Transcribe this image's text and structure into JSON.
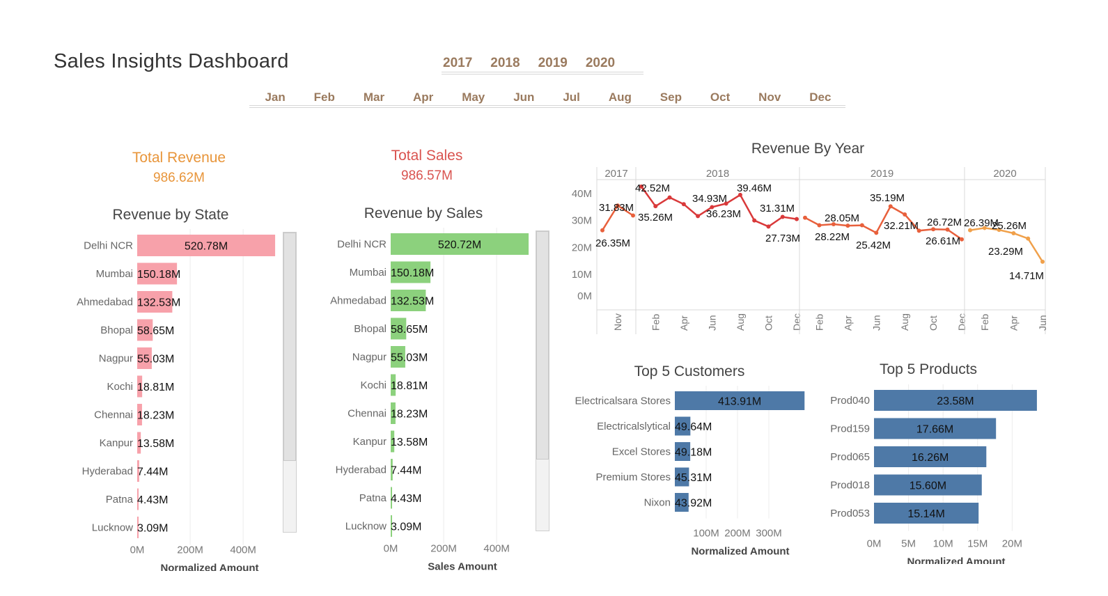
{
  "header": {
    "title": "Sales Insights Dashboard",
    "years": [
      "2017",
      "2018",
      "2019",
      "2020"
    ],
    "months": [
      "Jan",
      "Feb",
      "Mar",
      "Apr",
      "May",
      "Jun",
      "Jul",
      "Aug",
      "Sep",
      "Oct",
      "Nov",
      "Dec"
    ]
  },
  "kpis": {
    "revenue": {
      "label": "Total Revenue",
      "value": "986.62M",
      "color": "#e8953a"
    },
    "sales": {
      "label": "Total Sales",
      "value": "986.57M",
      "color": "#d9534f"
    }
  },
  "chart_data": [
    {
      "type": "bar",
      "title": "Revenue by State",
      "xlabel": "Normalized Amount",
      "color": "#f7a1aa",
      "categories": [
        "Delhi NCR",
        "Mumbai",
        "Ahmedabad",
        "Bhopal",
        "Nagpur",
        "Kochi",
        "Chennai",
        "Kanpur",
        "Hyderabad",
        "Patna",
        "Lucknow"
      ],
      "values": [
        520.78,
        150.18,
        132.53,
        58.65,
        55.03,
        18.81,
        18.23,
        13.58,
        7.44,
        4.43,
        3.09
      ],
      "labels": [
        "520.78M",
        "150.18M",
        "132.53M",
        "58.65M",
        "55.03M",
        "18.81M",
        "18.23M",
        "13.58M",
        "7.44M",
        "4.43M",
        "3.09M"
      ],
      "xticks": [
        "0M",
        "200M",
        "400M"
      ],
      "xlim": [
        0,
        560
      ]
    },
    {
      "type": "bar",
      "title": "Revenue by Sales",
      "xlabel": "Sales Amount",
      "color": "#8cd17d",
      "categories": [
        "Delhi NCR",
        "Mumbai",
        "Ahmedabad",
        "Bhopal",
        "Nagpur",
        "Kochi",
        "Chennai",
        "Kanpur",
        "Hyderabad",
        "Patna",
        "Lucknow"
      ],
      "values": [
        520.72,
        150.18,
        132.53,
        58.65,
        55.03,
        18.81,
        18.23,
        13.58,
        7.44,
        4.43,
        3.09
      ],
      "labels": [
        "520.72M",
        "150.18M",
        "132.53M",
        "58.65M",
        "55.03M",
        "18.81M",
        "18.23M",
        "13.58M",
        "7.44M",
        "4.43M",
        "3.09M"
      ],
      "xticks": [
        "0M",
        "200M",
        "400M"
      ],
      "xlim": [
        0,
        560
      ]
    },
    {
      "type": "line",
      "title": "Revenue By Year",
      "year_headers": [
        "2017",
        "2018",
        "2019",
        "2020"
      ],
      "yticks": [
        "0M",
        "10M",
        "20M",
        "30M",
        "40M"
      ],
      "ylim": [
        0,
        42
      ],
      "segments": [
        {
          "year": "2017",
          "x": [
            "Oct",
            "Nov",
            "Dec"
          ],
          "values": [
            26.35,
            35.5,
            31.83
          ],
          "color": "#e8603c",
          "ticks": [
            "Nov"
          ]
        },
        {
          "year": "2018",
          "x": [
            "Jan",
            "Feb",
            "Mar",
            "Apr",
            "May",
            "Jun",
            "Jul",
            "Aug",
            "Sep",
            "Oct",
            "Nov",
            "Dec"
          ],
          "values": [
            42.52,
            35.26,
            38.5,
            36.0,
            31.6,
            34.93,
            36.23,
            39.46,
            30.0,
            27.73,
            31.31,
            30.5
          ],
          "color": "#d9393a",
          "ticks": [
            "Feb",
            "Apr",
            "Jun",
            "Aug",
            "Oct",
            "Dec"
          ]
        },
        {
          "year": "2019",
          "x": [
            "Jan",
            "Feb",
            "Mar",
            "Apr",
            "May",
            "Jun",
            "Jul",
            "Aug",
            "Sep",
            "Oct",
            "Nov",
            "Dec"
          ],
          "values": [
            31.0,
            28.22,
            28.6,
            28.05,
            28.2,
            25.42,
            35.19,
            32.21,
            26.2,
            26.72,
            26.61,
            23.0
          ],
          "color": "#e8603c",
          "ticks": [
            "Feb",
            "Apr",
            "Jun",
            "Aug",
            "Oct",
            "Dec"
          ]
        },
        {
          "year": "2020",
          "x": [
            "Jan",
            "Feb",
            "Mar",
            "Apr",
            "May",
            "Jun"
          ],
          "values": [
            26.39,
            27.2,
            26.5,
            25.26,
            23.29,
            14.71
          ],
          "color": "#f0a04a",
          "ticks": [
            "Feb",
            "Apr",
            "Jun"
          ]
        }
      ],
      "labels": [
        "26.35M",
        "31.83M",
        "42.52M",
        "35.26M",
        "34.93M",
        "36.23M",
        "39.46M",
        "31.31M",
        "27.73M",
        "28.05M",
        "28.22M",
        "25.42M",
        "35.19M",
        "32.21M",
        "26.72M",
        "26.61M",
        "26.39M",
        "25.26M",
        "23.29M",
        "14.71M"
      ]
    },
    {
      "type": "bar",
      "title": "Top 5 Customers",
      "xlabel": "Normalized Amount",
      "color": "#4e79a7",
      "categories": [
        "Electricalsara Stores",
        "Electricalslytical",
        "Excel Stores",
        "Premium Stores",
        "Nixon"
      ],
      "values": [
        413.91,
        49.64,
        49.18,
        45.31,
        43.92
      ],
      "labels": [
        "413.91M",
        "49.64M",
        "49.18M",
        "45.31M",
        "43.92M"
      ],
      "xticks": [
        "100M",
        "200M",
        "300M"
      ],
      "xlim": [
        0,
        440
      ]
    },
    {
      "type": "bar",
      "title": "Top 5 Products",
      "xlabel": "Normalized Amount",
      "color": "#4e79a7",
      "categories": [
        "Prod040",
        "Prod159",
        "Prod065",
        "Prod018",
        "Prod053"
      ],
      "values": [
        23.58,
        17.66,
        16.26,
        15.6,
        15.14
      ],
      "labels": [
        "23.58M",
        "17.66M",
        "16.26M",
        "15.60M",
        "15.14M"
      ],
      "xticks": [
        "0M",
        "5M",
        "10M",
        "15M",
        "20M"
      ],
      "xlim": [
        0,
        25
      ]
    }
  ]
}
